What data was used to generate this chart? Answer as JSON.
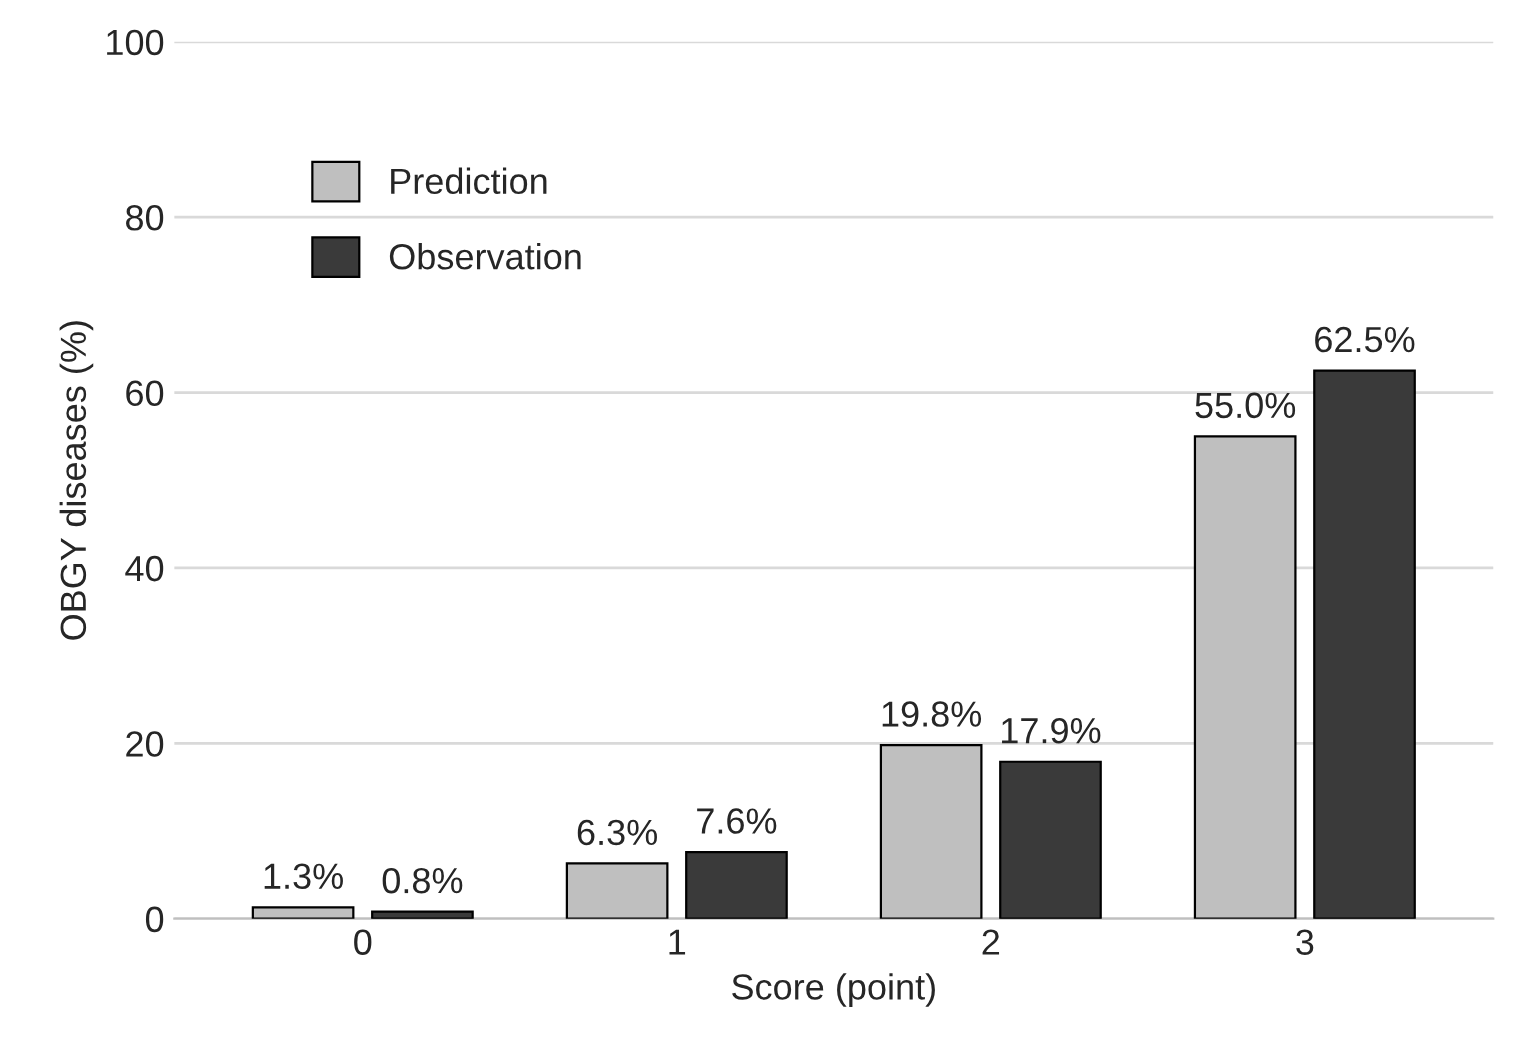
{
  "chart_data": {
    "type": "bar",
    "xlabel": "Score (point)",
    "ylabel": "OBGY diseases (%)",
    "categories": [
      "0",
      "1",
      "2",
      "3"
    ],
    "series": [
      {
        "name": "Prediction",
        "color": "#bfbfbf",
        "values": [
          1.3,
          6.3,
          19.8,
          55.0
        ],
        "value_labels": [
          "1.3%",
          "6.3%",
          "19.8%",
          "55.0%"
        ]
      },
      {
        "name": "Observation",
        "color": "#3a3a3a",
        "values": [
          0.8,
          7.6,
          17.9,
          62.5
        ],
        "value_labels": [
          "0.8%",
          "7.6%",
          "17.9%",
          "62.5%"
        ]
      }
    ],
    "ylim": [
      0,
      100
    ],
    "yticks": [
      0,
      20,
      40,
      60,
      80,
      100
    ],
    "grid": "y",
    "legend": "top left"
  }
}
